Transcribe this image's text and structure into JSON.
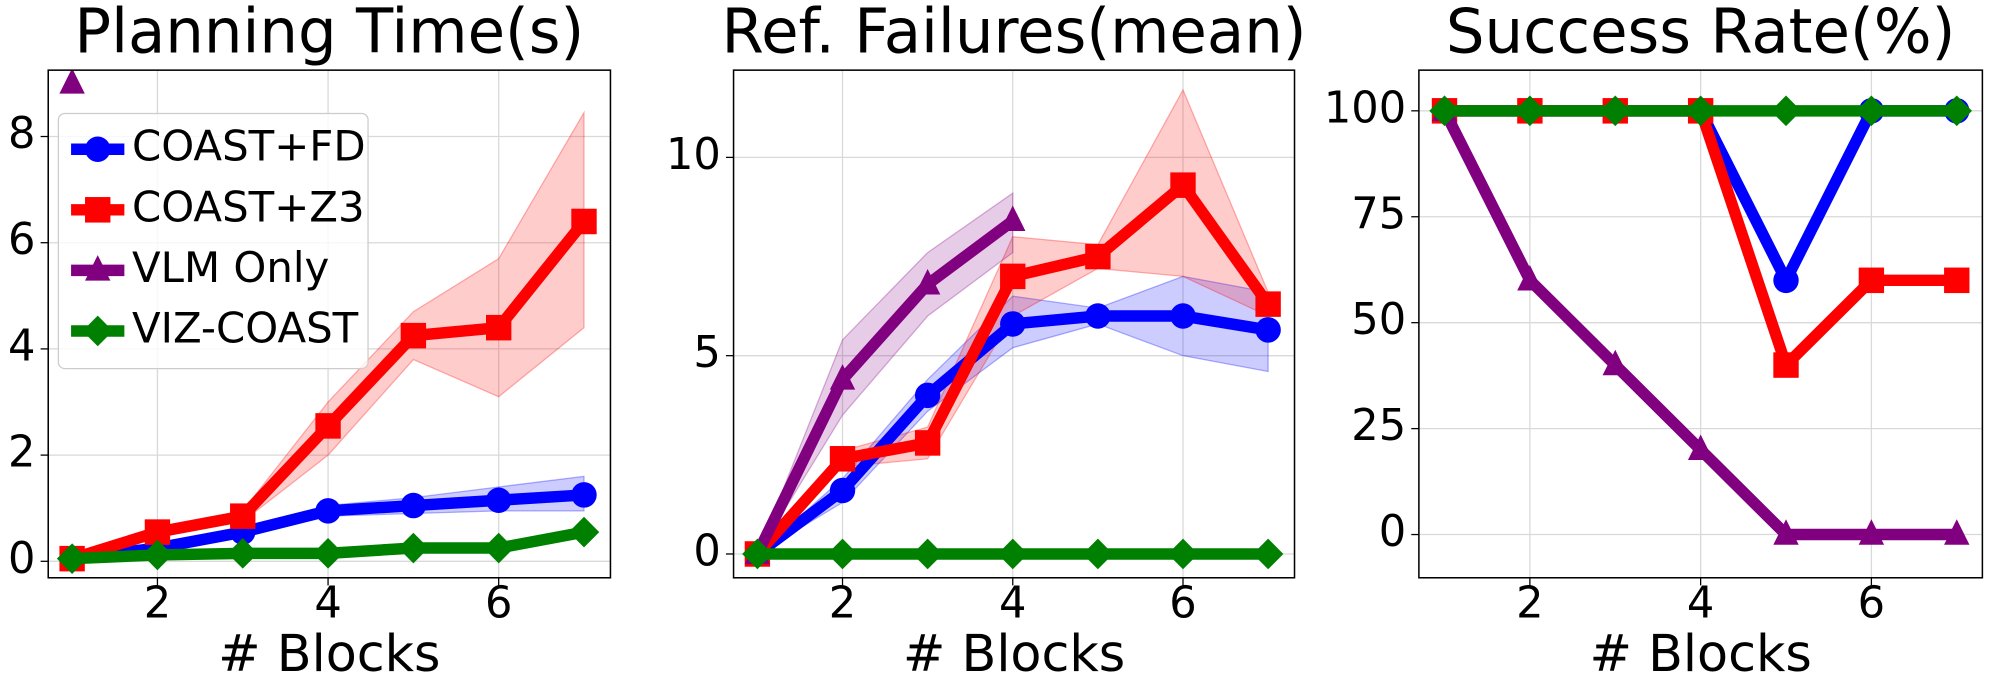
{
  "chart_data": [
    {
      "type": "line",
      "title": "Planning Time(s)",
      "x_label": "# Blocks",
      "x": [
        1,
        2,
        3,
        4,
        5,
        6,
        7
      ],
      "xlim": [
        0.72,
        7.31
      ],
      "xticks": [
        2,
        4,
        6
      ],
      "ylim": [
        -0.31,
        9.25
      ],
      "yticks": [
        0,
        2,
        4,
        6,
        8
      ],
      "grid": true,
      "legend": "upper left",
      "series": [
        {
          "name": "COAST+FD",
          "color": "#0000ff",
          "marker": "circle",
          "values": [
            0.05,
            0.25,
            0.55,
            0.95,
            1.05,
            1.15,
            1.25
          ],
          "lower": [
            0.05,
            0.15,
            0.45,
            0.85,
            0.9,
            0.95,
            0.95
          ],
          "upper": [
            0.05,
            0.35,
            0.65,
            1.05,
            1.2,
            1.4,
            1.6
          ]
        },
        {
          "name": "COAST+Z3",
          "color": "#ff0000",
          "marker": "square",
          "values": [
            0.05,
            0.55,
            0.85,
            2.55,
            4.25,
            4.4,
            6.4
          ],
          "lower": [
            0.05,
            0.45,
            0.75,
            2.0,
            3.8,
            3.1,
            4.4
          ],
          "upper": [
            0.05,
            0.65,
            0.95,
            3.0,
            4.7,
            5.7,
            8.45
          ]
        },
        {
          "name": "VLM Only",
          "color": "#800080",
          "marker": "triangle",
          "values": [
            9.0,
            null,
            null,
            null,
            null,
            null,
            null
          ]
        },
        {
          "name": "VIZ-COAST",
          "color": "#008000",
          "marker": "diamond",
          "values": [
            0.05,
            0.12,
            0.15,
            0.15,
            0.25,
            0.25,
            0.55
          ],
          "lower": [
            0.05,
            0.1,
            0.12,
            0.12,
            0.2,
            0.2,
            0.45
          ],
          "upper": [
            0.05,
            0.15,
            0.18,
            0.18,
            0.3,
            0.3,
            0.65
          ]
        }
      ]
    },
    {
      "type": "line",
      "title": "Ref. Failures(mean)",
      "x_label": "# Blocks",
      "x": [
        1,
        2,
        3,
        4,
        5,
        6,
        7
      ],
      "xlim": [
        0.72,
        7.31
      ],
      "xticks": [
        2,
        4,
        6
      ],
      "ylim": [
        -0.6,
        12.2
      ],
      "yticks": [
        0,
        5,
        10
      ],
      "grid": true,
      "series": [
        {
          "color": "#0000ff",
          "marker": "circle",
          "values": [
            0,
            1.6,
            4.0,
            5.8,
            6.0,
            6.0,
            5.65
          ],
          "lower": [
            0,
            1.3,
            3.6,
            5.2,
            5.8,
            5.0,
            4.6
          ],
          "upper": [
            0,
            1.9,
            4.4,
            6.5,
            6.2,
            7.0,
            6.6
          ]
        },
        {
          "color": "#ff0000",
          "marker": "square",
          "values": [
            0,
            2.4,
            2.8,
            7.0,
            7.5,
            9.3,
            6.3
          ],
          "lower": [
            0,
            2.2,
            2.4,
            6.0,
            7.2,
            7.0,
            6.0
          ],
          "upper": [
            0,
            2.6,
            3.2,
            8.0,
            7.8,
            11.7,
            6.6
          ]
        },
        {
          "color": "#800080",
          "marker": "triangle",
          "values": [
            0,
            4.4,
            6.8,
            8.4,
            null,
            null,
            null
          ],
          "lower": [
            0,
            3.5,
            6.0,
            7.6,
            null,
            null,
            null
          ],
          "upper": [
            0,
            5.4,
            7.6,
            9.1,
            null,
            null,
            null
          ]
        },
        {
          "color": "#008000",
          "marker": "diamond",
          "values": [
            0,
            0,
            0,
            0,
            0,
            0,
            0
          ]
        }
      ]
    },
    {
      "type": "line",
      "title": "Success Rate(%)",
      "x_label": "# Blocks",
      "x": [
        1,
        2,
        3,
        4,
        5,
        6,
        7
      ],
      "xlim": [
        0.7,
        7.3
      ],
      "xticks": [
        2,
        4,
        6
      ],
      "ylim": [
        -10.2,
        109.6
      ],
      "yticks": [
        0,
        25,
        50,
        75,
        100
      ],
      "grid": true,
      "series": [
        {
          "color": "#0000ff",
          "marker": "circle",
          "values": [
            100,
            100,
            100,
            100,
            60,
            100,
            100
          ]
        },
        {
          "color": "#ff0000",
          "marker": "square",
          "values": [
            100,
            100,
            100,
            100,
            40,
            60,
            60
          ]
        },
        {
          "color": "#800080",
          "marker": "triangle",
          "values": [
            100,
            60,
            40,
            20,
            0,
            0,
            0
          ]
        },
        {
          "color": "#008000",
          "marker": "diamond",
          "values": [
            100,
            100,
            100,
            100,
            100,
            100,
            100
          ]
        }
      ]
    }
  ]
}
